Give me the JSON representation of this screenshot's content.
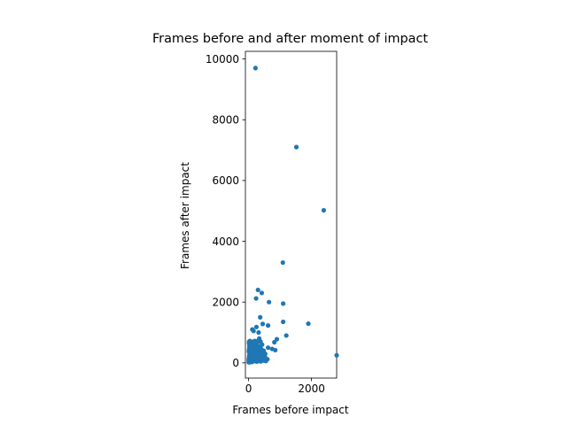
{
  "chart_data": {
    "type": "scatter",
    "title": "Frames before and after moment of impact",
    "xlabel": "Frames before impact",
    "ylabel": "Frames after impact",
    "xlim": [
      -100,
      2800
    ],
    "ylim": [
      -500,
      10250
    ],
    "xticks": [
      0,
      2000
    ],
    "xtick_labels": [
      "0",
      "2000"
    ],
    "yticks": [
      0,
      2000,
      4000,
      6000,
      8000,
      10000
    ],
    "ytick_labels": [
      "0",
      "2000",
      "4000",
      "6000",
      "8000",
      "10000"
    ],
    "grid": false,
    "marker_color": "#1f77b4",
    "series": [
      {
        "points": [
          [
            220,
            9700
          ],
          [
            1520,
            7100
          ],
          [
            2390,
            5020
          ],
          [
            1090,
            3300
          ],
          [
            2800,
            250
          ],
          [
            1900,
            1290
          ],
          [
            1200,
            900
          ],
          [
            1100,
            1950
          ],
          [
            1100,
            1350
          ],
          [
            650,
            2000
          ],
          [
            620,
            1230
          ],
          [
            300,
            2400
          ],
          [
            420,
            2300
          ],
          [
            240,
            2120
          ],
          [
            370,
            1500
          ],
          [
            450,
            1280
          ],
          [
            250,
            1180
          ],
          [
            120,
            1100
          ],
          [
            160,
            1050
          ],
          [
            820,
            680
          ],
          [
            900,
            780
          ],
          [
            850,
            420
          ],
          [
            750,
            460
          ],
          [
            620,
            500
          ],
          [
            600,
            120
          ],
          [
            550,
            60
          ],
          [
            500,
            80
          ],
          [
            520,
            200
          ],
          [
            450,
            350
          ],
          [
            430,
            600
          ],
          [
            380,
            700
          ],
          [
            360,
            540
          ],
          [
            340,
            800
          ],
          [
            320,
            1000
          ],
          [
            300,
            400
          ],
          [
            280,
            250
          ],
          [
            260,
            650
          ],
          [
            240,
            700
          ],
          [
            220,
            500
          ],
          [
            200,
            600
          ],
          [
            180,
            300
          ],
          [
            160,
            450
          ],
          [
            150,
            700
          ],
          [
            140,
            200
          ],
          [
            130,
            550
          ],
          [
            120,
            100
          ],
          [
            110,
            650
          ],
          [
            100,
            350
          ],
          [
            90,
            500
          ],
          [
            80,
            150
          ],
          [
            70,
            700
          ],
          [
            60,
            300
          ],
          [
            50,
            450
          ],
          [
            40,
            50
          ],
          [
            30,
            600
          ],
          [
            20,
            200
          ],
          [
            10,
            400
          ],
          [
            5,
            100
          ],
          [
            15,
            650
          ],
          [
            25,
            250
          ],
          [
            35,
            500
          ],
          [
            45,
            20
          ],
          [
            55,
            350
          ],
          [
            65,
            600
          ],
          [
            75,
            80
          ],
          [
            85,
            420
          ],
          [
            95,
            250
          ],
          [
            105,
            480
          ],
          [
            115,
            30
          ],
          [
            125,
            380
          ],
          [
            135,
            120
          ],
          [
            145,
            560
          ],
          [
            155,
            60
          ],
          [
            165,
            300
          ],
          [
            175,
            520
          ],
          [
            185,
            150
          ],
          [
            195,
            400
          ],
          [
            205,
            80
          ],
          [
            215,
            330
          ],
          [
            225,
            620
          ],
          [
            235,
            180
          ],
          [
            245,
            450
          ],
          [
            255,
            40
          ],
          [
            265,
            350
          ],
          [
            275,
            580
          ],
          [
            285,
            100
          ],
          [
            295,
            300
          ],
          [
            305,
            150
          ],
          [
            315,
            500
          ],
          [
            325,
            60
          ],
          [
            335,
            280
          ],
          [
            345,
            420
          ],
          [
            355,
            200
          ],
          [
            365,
            100
          ],
          [
            375,
            350
          ],
          [
            385,
            50
          ],
          [
            395,
            250
          ],
          [
            405,
            450
          ],
          [
            415,
            120
          ],
          [
            425,
            300
          ],
          [
            440,
            180
          ],
          [
            460,
            80
          ],
          [
            480,
            400
          ],
          [
            490,
            250
          ],
          [
            510,
            120
          ],
          [
            530,
            300
          ],
          [
            20,
            700
          ],
          [
            40,
            720
          ],
          [
            60,
            650
          ],
          [
            80,
            680
          ],
          [
            100,
            620
          ],
          [
            200,
            720
          ],
          [
            300,
            720
          ],
          [
            5,
            20
          ],
          [
            10,
            60
          ],
          [
            12,
            150
          ],
          [
            18,
            350
          ],
          [
            22,
            480
          ],
          [
            28,
            560
          ],
          [
            32,
            90
          ]
        ]
      }
    ]
  }
}
